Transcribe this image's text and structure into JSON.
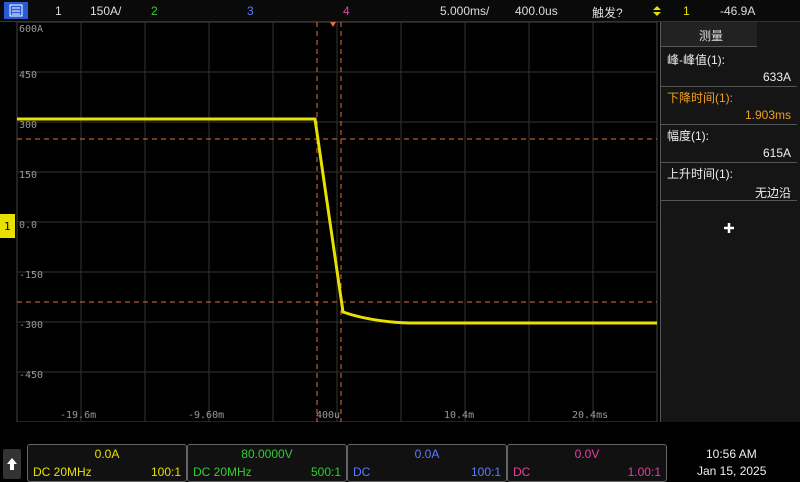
{
  "top_bar": {
    "channel": "1",
    "scale": "150A/",
    "ch2": "2",
    "ch3": "3",
    "ch4": "4",
    "timebase": "5.000ms/",
    "delay": "400.0us",
    "trigger_status": "触发?",
    "trigger_source": "1",
    "trigger_level": "-46.9A"
  },
  "plot": {
    "ground_marker": "1",
    "y_labels": [
      "600A",
      "450",
      "300",
      "150",
      "0.0",
      "-150",
      "-300",
      "-450"
    ],
    "x_labels": [
      "-19.6m",
      "-9.60m",
      "400u",
      "10.4m",
      "20.4ms"
    ]
  },
  "panel": {
    "tab": "测量",
    "measurements": [
      {
        "label": "峰-峰值(1):",
        "value": "633A"
      },
      {
        "label": "下降时间(1):",
        "value": "1.903ms"
      },
      {
        "label": "幅度(1):",
        "value": "615A"
      },
      {
        "label": "上升时间(1):",
        "value": "无边沿"
      }
    ]
  },
  "channels": [
    {
      "offset": "0.0A",
      "coupling": "DC 20MHz",
      "probe": "100:1"
    },
    {
      "offset": "80.0000V",
      "coupling": "DC 20MHz",
      "probe": "500:1"
    },
    {
      "offset": "0.0A",
      "coupling": "DC",
      "probe": "100:1"
    },
    {
      "offset": "0.0V",
      "coupling": "DC",
      "probe": "1.00:1"
    }
  ],
  "clock": {
    "time": "10:56 AM",
    "date": "Jan 15, 2025"
  }
}
